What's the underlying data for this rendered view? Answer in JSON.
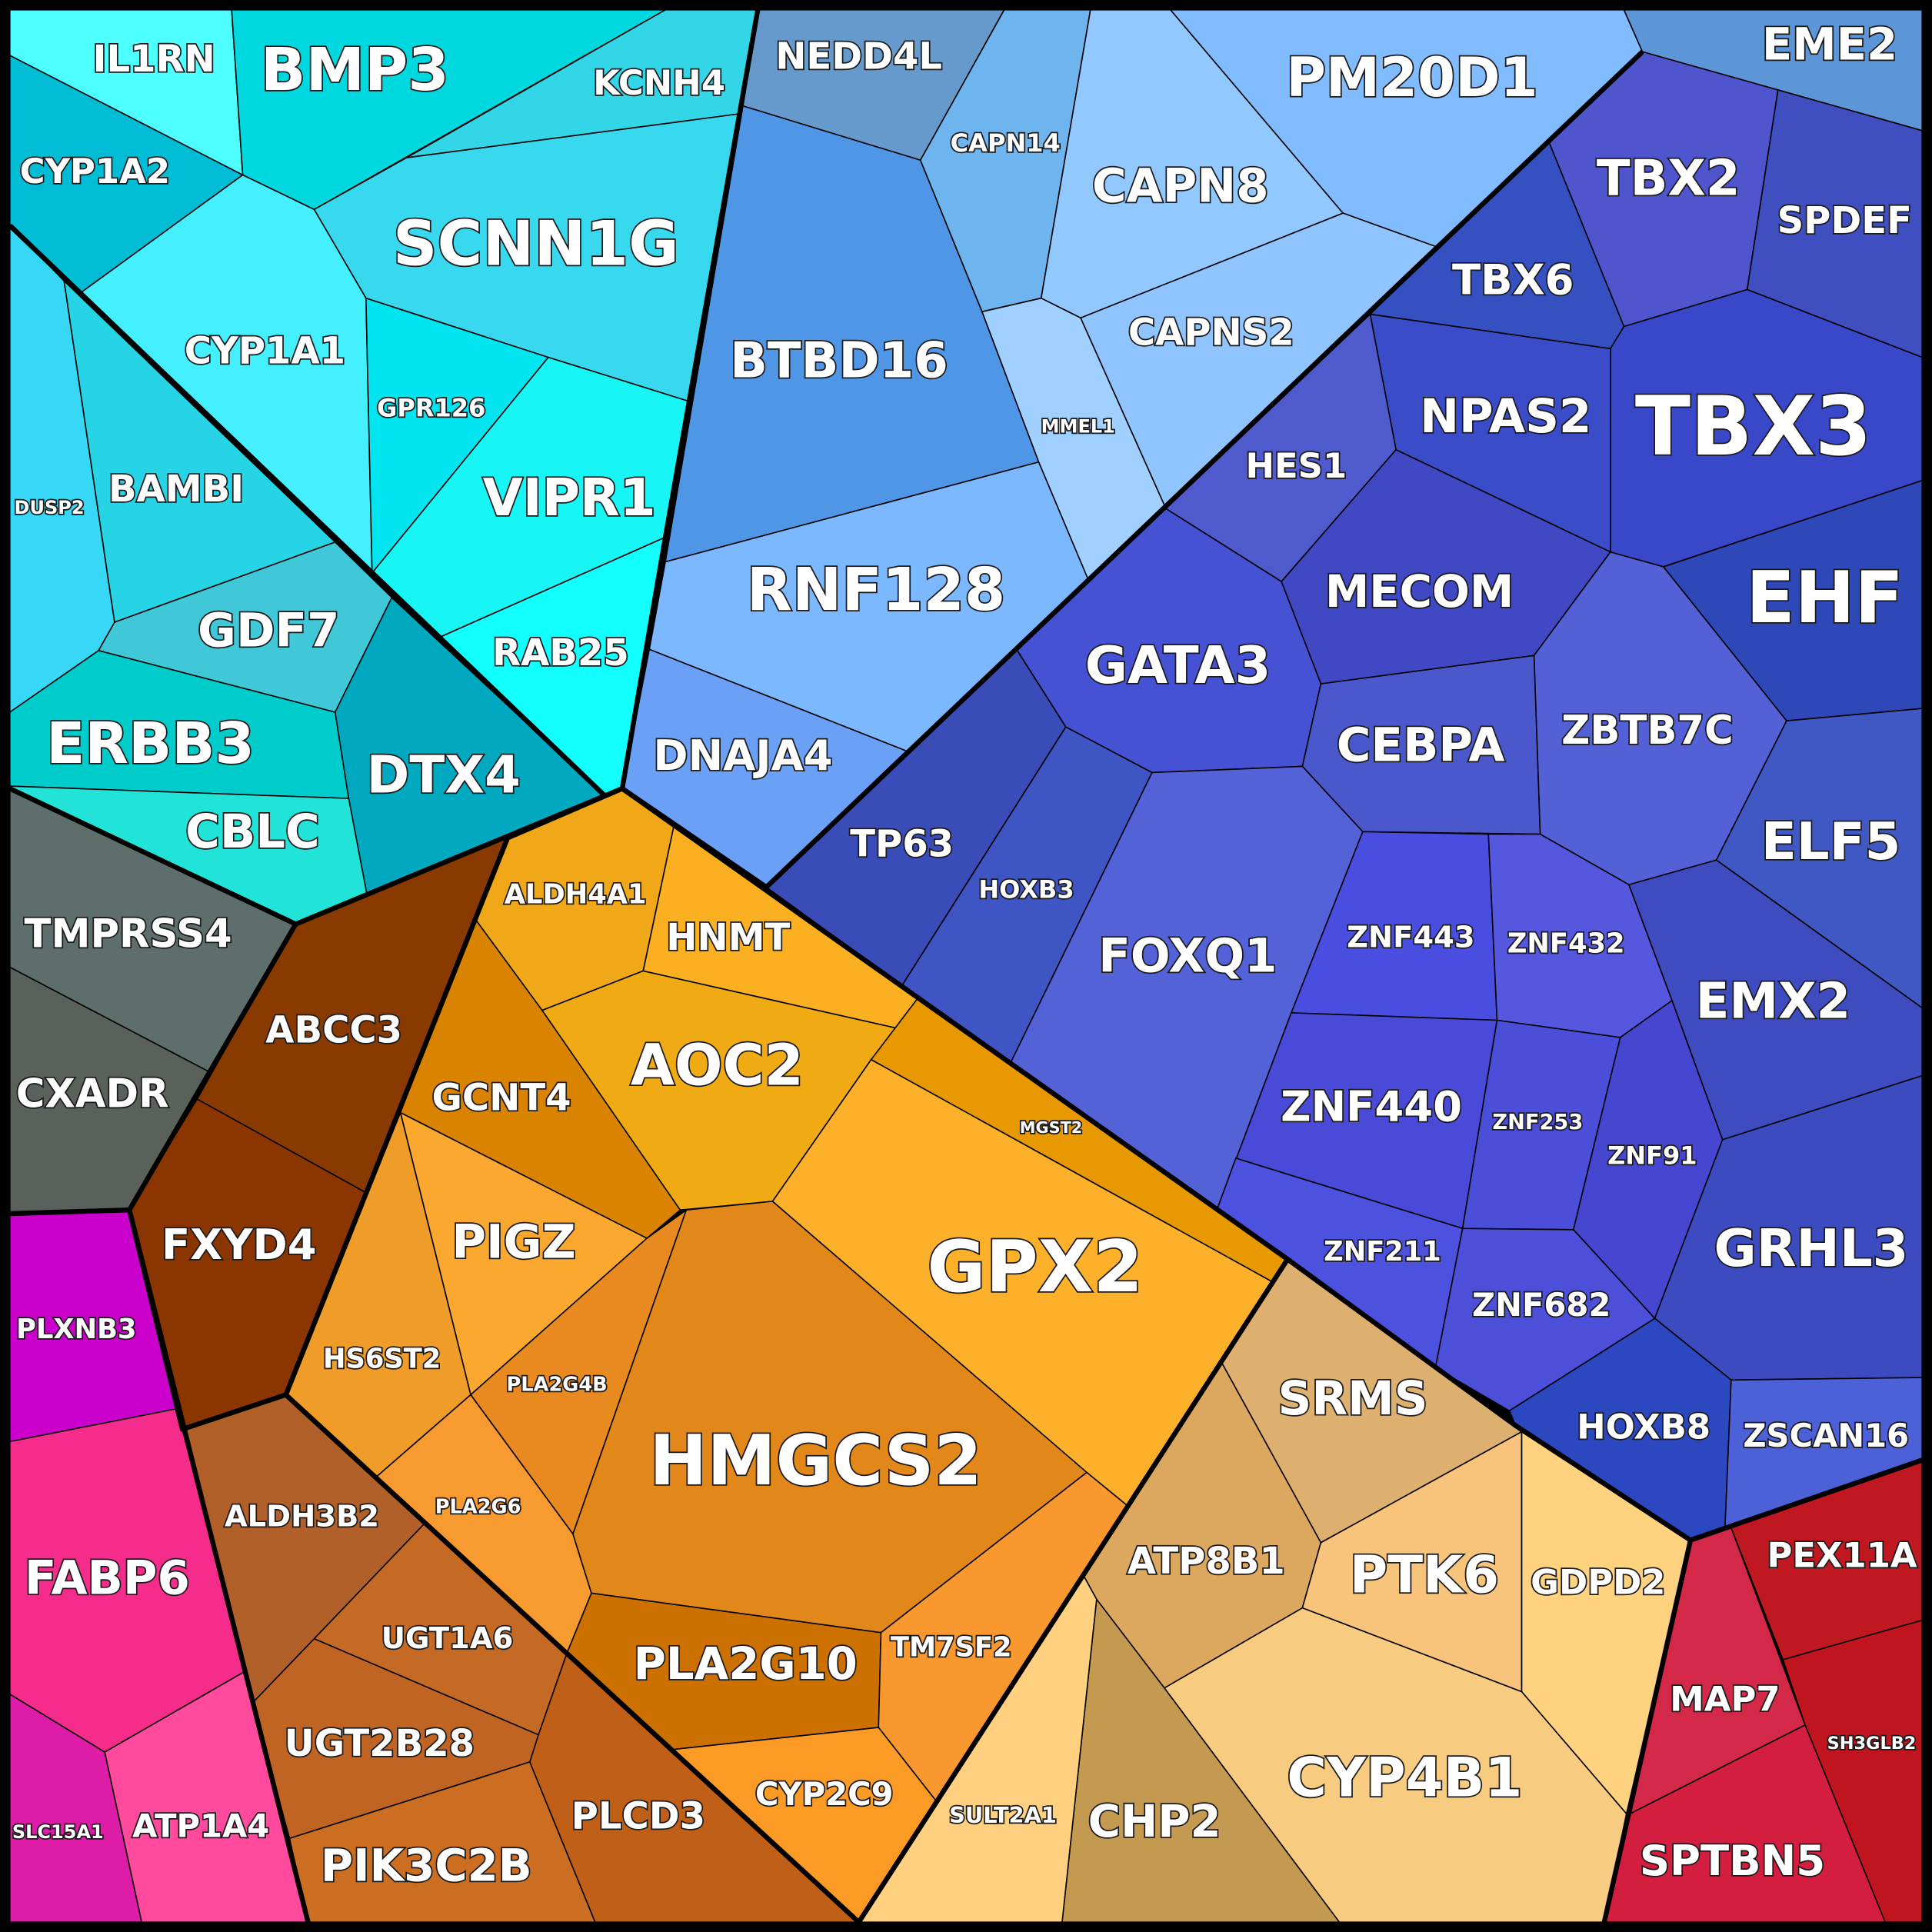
{
  "cells": [
    {
      "label": "IL1RN",
      "color": "#4dffff"
    },
    {
      "label": "BMP3",
      "color": "#00d8e0"
    },
    {
      "label": "KCNH4",
      "color": "#33d6e6"
    },
    {
      "label": "CYP1A2",
      "color": "#00bcd4"
    },
    {
      "label": "SCNN1G",
      "color": "#38d9ee"
    },
    {
      "label": "CYP1A1",
      "color": "#44f0ff"
    },
    {
      "label": "GPR126",
      "color": "#00e5f0"
    },
    {
      "label": "VIPR1",
      "color": "#18f5f5"
    },
    {
      "label": "RAB25",
      "color": "#12ffff"
    },
    {
      "label": "DUSP2",
      "color": "#36d8f5"
    },
    {
      "label": "BAMBI",
      "color": "#26d4e6"
    },
    {
      "label": "GDF7",
      "color": "#40c8d8"
    },
    {
      "label": "ERBB3",
      "color": "#00cccc"
    },
    {
      "label": "DTX4",
      "color": "#00a8c0"
    },
    {
      "label": "CBLC",
      "color": "#22e3d8"
    },
    {
      "label": "NEDD4L",
      "color": "#6699cc"
    },
    {
      "label": "CAPN14",
      "color": "#6eb4ee"
    },
    {
      "label": "CAPN8",
      "color": "#90c8ff"
    },
    {
      "label": "PM20D1",
      "color": "#80bcff"
    },
    {
      "label": "CAPNS2",
      "color": "#90c4ff"
    },
    {
      "label": "MMEL1",
      "color": "#a0d0ff"
    },
    {
      "label": "BTBD16",
      "color": "#5096e6"
    },
    {
      "label": "RNF128",
      "color": "#7cb8ff"
    },
    {
      "label": "DNAJA4",
      "color": "#6aa0f5"
    },
    {
      "label": "EME2",
      "color": "#5c96d6"
    },
    {
      "label": "TBX2",
      "color": "#4f55cc"
    },
    {
      "label": "SPDEF",
      "color": "#3f4fc0"
    },
    {
      "label": "TBX6",
      "color": "#3550c0"
    },
    {
      "label": "TBX3",
      "color": "#3848c8"
    },
    {
      "label": "NPAS2",
      "color": "#3a4cc8"
    },
    {
      "label": "HES1",
      "color": "#4f5bcc"
    },
    {
      "label": "EHF",
      "color": "#2f48b8"
    },
    {
      "label": "MECOM",
      "color": "#4048c4"
    },
    {
      "label": "GATA3",
      "color": "#4652d4"
    },
    {
      "label": "ZBTB7C",
      "color": "#5460d6"
    },
    {
      "label": "CEBPA",
      "color": "#4a58cc"
    },
    {
      "label": "ELF5",
      "color": "#3f58c4"
    },
    {
      "label": "TP63",
      "color": "#3a4cb8"
    },
    {
      "label": "HOXB3",
      "color": "#3f55c4"
    },
    {
      "label": "FOXQ1",
      "color": "#5462d8"
    },
    {
      "label": "ZNF443",
      "color": "#4a4ee0"
    },
    {
      "label": "ZNF432",
      "color": "#5558de"
    },
    {
      "label": "EMX2",
      "color": "#3f4cc0"
    },
    {
      "label": "ZNF440",
      "color": "#4a4ad8"
    },
    {
      "label": "ZNF253",
      "color": "#4b4ed8"
    },
    {
      "label": "ZNF91",
      "color": "#4646d0"
    },
    {
      "label": "GRHL3",
      "color": "#3c4cc0"
    },
    {
      "label": "ZNF211",
      "color": "#4c52de"
    },
    {
      "label": "ZNF682",
      "color": "#4c50d8"
    },
    {
      "label": "HOXB8",
      "color": "#2b48c0"
    },
    {
      "label": "ZSCAN16",
      "color": "#4c60d8"
    },
    {
      "label": "SRMS",
      "color": "#deb070"
    },
    {
      "label": "ATP8B1",
      "color": "#dca860"
    },
    {
      "label": "PTK6",
      "color": "#f8c47c"
    },
    {
      "label": "GDPD2",
      "color": "#ffd280"
    },
    {
      "label": "CYP4B1",
      "color": "#f8cc80"
    },
    {
      "label": "CHP2",
      "color": "#c49a50"
    },
    {
      "label": "SULT2A1",
      "color": "#ffd080"
    },
    {
      "label": "MAP7",
      "color": "#d42848"
    },
    {
      "label": "PEX11A",
      "color": "#c01820"
    },
    {
      "label": "SH3GLB2",
      "color": "#c0141e"
    },
    {
      "label": "SPTBN5",
      "color": "#d41e40"
    },
    {
      "label": "TMPRSS4",
      "color": "#5e6e6c"
    },
    {
      "label": "CXADR",
      "color": "#5a605a"
    },
    {
      "label": "PLXNB3",
      "color": "#cc00cc"
    },
    {
      "label": "FABP6",
      "color": "#f52c8c"
    },
    {
      "label": "SLC15A1",
      "color": "#dd1ca8"
    },
    {
      "label": "ATP1A4",
      "color": "#ff4a9e"
    },
    {
      "label": "ABCC3",
      "color": "#883a00"
    },
    {
      "label": "FXYD4",
      "color": "#8b3500"
    },
    {
      "label": "ALDH3B2",
      "color": "#b06028"
    },
    {
      "label": "UGT1A6",
      "color": "#c46a25"
    },
    {
      "label": "UGT2B28",
      "color": "#c06424"
    },
    {
      "label": "PIK3C2B",
      "color": "#cc6e22"
    },
    {
      "label": "PLCD3",
      "color": "#c06018"
    },
    {
      "label": "ALDH4A1",
      "color": "#f0a818"
    },
    {
      "label": "HNMT",
      "color": "#fab020"
    },
    {
      "label": "AOC2",
      "color": "#f0aa14"
    },
    {
      "label": "MGST2",
      "color": "#e89800"
    },
    {
      "label": "GPX2",
      "color": "#fdb02a"
    },
    {
      "label": "GCNT4",
      "color": "#d98300"
    },
    {
      "label": "PIGZ",
      "color": "#fba830"
    },
    {
      "label": "HS6ST2",
      "color": "#f09c28"
    },
    {
      "label": "PLA2G4B",
      "color": "#e88a20"
    },
    {
      "label": "PLA2G6",
      "color": "#f79a30"
    },
    {
      "label": "HMGCS2",
      "color": "#e2871a"
    },
    {
      "label": "PLA2G10",
      "color": "#cc7000"
    },
    {
      "label": "TM7SF2",
      "color": "#f8982e"
    },
    {
      "label": "CYP2C9",
      "color": "#fb9a24"
    }
  ]
}
